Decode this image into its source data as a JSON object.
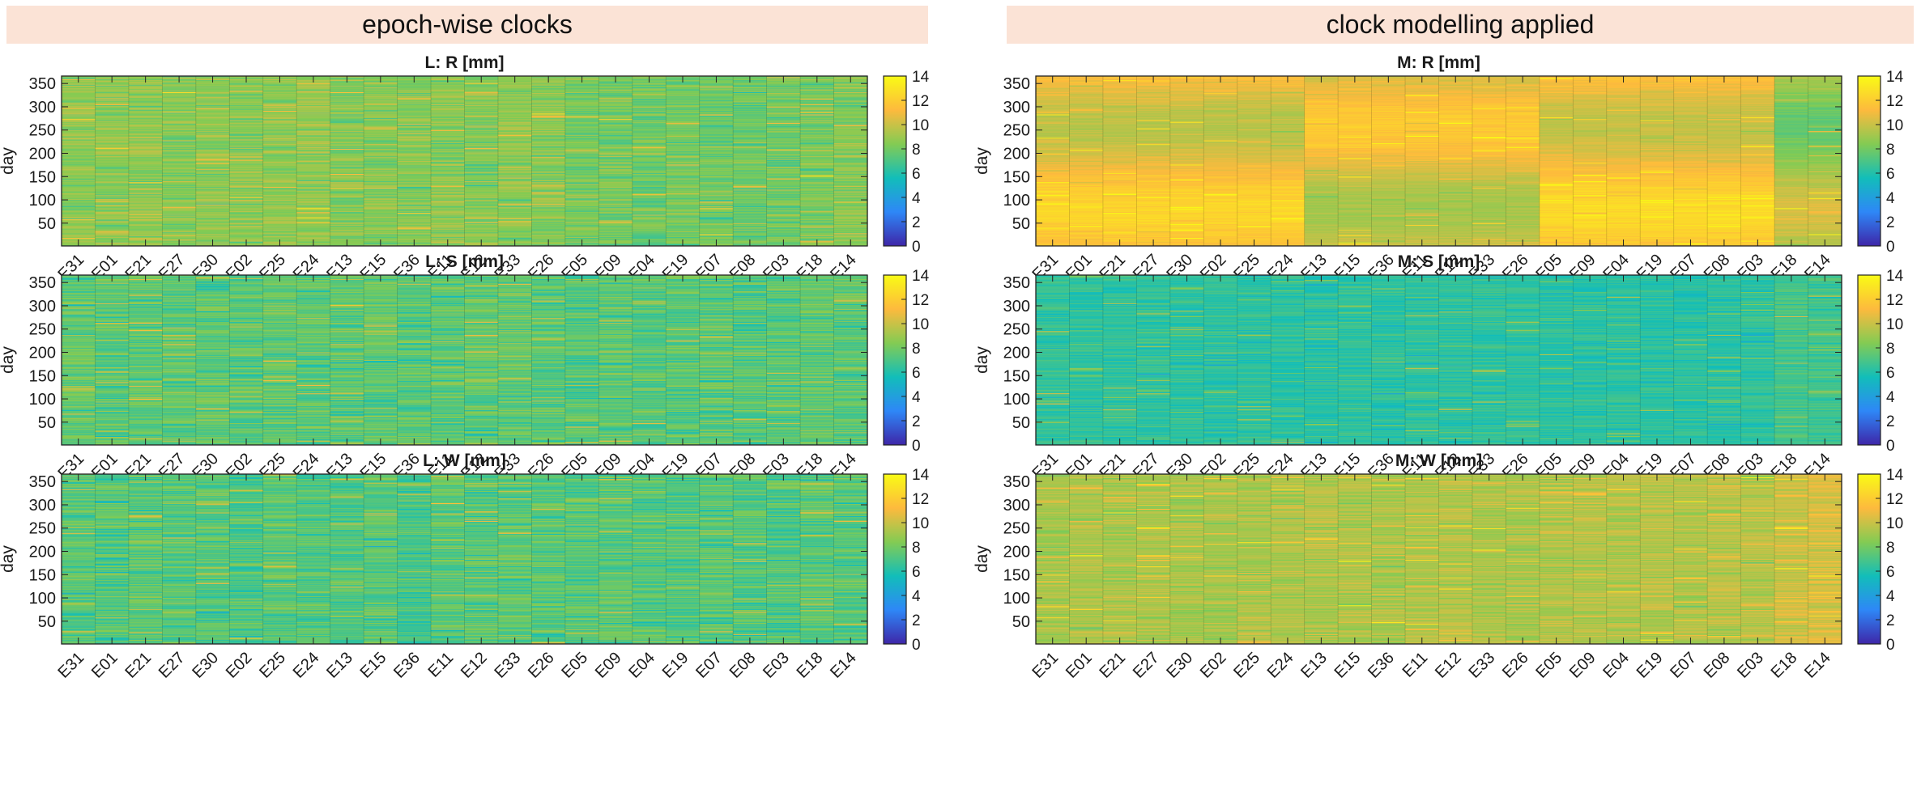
{
  "headers": {
    "left": "epoch-wise clocks",
    "right": "clock modelling applied"
  },
  "colors": {
    "header_bg": "#fbe3d6",
    "colormap": "parula"
  },
  "shared": {
    "categories": [
      "E31",
      "E01",
      "E21",
      "E27",
      "E30",
      "E02",
      "E25",
      "E24",
      "E13",
      "E15",
      "E36",
      "E11",
      "E12",
      "E33",
      "E26",
      "E05",
      "E09",
      "E04",
      "E19",
      "E07",
      "E08",
      "E03",
      "E18",
      "E14"
    ],
    "ylabel": "day",
    "yticks": [
      50,
      100,
      150,
      200,
      250,
      300,
      350
    ],
    "ylim": [
      1,
      366
    ],
    "clim": [
      0,
      14
    ],
    "cbar_ticks": [
      0,
      2,
      4,
      6,
      8,
      10,
      12,
      14
    ]
  },
  "chart_data": [
    {
      "type": "heatmap",
      "title": "L: R [mm]",
      "ylabel": "day",
      "clim": [
        0,
        14
      ],
      "column_means": [
        8.6,
        8.6,
        8.7,
        8.5,
        8.6,
        8.5,
        8.7,
        8.8,
        8.4,
        8.5,
        8.4,
        8.5,
        8.4,
        8.6,
        8.5,
        8.2,
        8.1,
        8.0,
        8.0,
        7.9,
        7.9,
        8.0,
        8.1,
        8.4
      ],
      "row_noise": 1.6
    },
    {
      "type": "heatmap",
      "title": "M: R [mm]",
      "ylabel": "day",
      "clim": [
        0,
        14
      ],
      "column_means": [
        11.0,
        11.0,
        11.0,
        11.0,
        11.0,
        11.0,
        11.0,
        11.0,
        10.5,
        10.5,
        10.5,
        10.5,
        10.5,
        10.5,
        10.5,
        11.2,
        11.2,
        11.2,
        11.2,
        11.2,
        11.2,
        11.2,
        9.0,
        9.0
      ],
      "row_noise": 0.7
    },
    {
      "type": "heatmap",
      "title": "L: S [mm]",
      "ylabel": "day",
      "clim": [
        0,
        14
      ],
      "column_means": [
        7.6,
        7.4,
        7.6,
        7.6,
        7.5,
        7.4,
        7.6,
        7.5,
        7.5,
        7.5,
        7.3,
        7.4,
        7.5,
        7.6,
        7.4,
        7.3,
        7.4,
        7.3,
        7.3,
        7.4,
        7.3,
        7.3,
        7.5,
        7.4
      ],
      "row_noise": 1.8
    },
    {
      "type": "heatmap",
      "title": "M: S [mm]",
      "ylabel": "day",
      "clim": [
        0,
        14
      ],
      "column_means": [
        6.4,
        6.3,
        6.4,
        6.4,
        6.3,
        6.3,
        6.3,
        6.3,
        6.2,
        6.3,
        6.2,
        6.3,
        6.3,
        6.3,
        6.3,
        6.2,
        6.2,
        6.3,
        6.2,
        6.2,
        6.2,
        6.3,
        6.8,
        6.8
      ],
      "row_noise": 1.1
    },
    {
      "type": "heatmap",
      "title": "L: W [mm]",
      "ylabel": "day",
      "clim": [
        0,
        14
      ],
      "column_means": [
        7.4,
        7.2,
        7.5,
        7.3,
        7.3,
        7.1,
        7.4,
        7.2,
        7.2,
        7.3,
        7.1,
        7.3,
        7.4,
        7.5,
        7.3,
        7.3,
        7.4,
        7.4,
        7.3,
        7.3,
        7.3,
        7.2,
        7.4,
        7.3
      ],
      "row_noise": 1.8
    },
    {
      "type": "heatmap",
      "title": "M: W [mm]",
      "ylabel": "day",
      "clim": [
        0,
        14
      ],
      "column_means": [
        9.2,
        9.3,
        9.3,
        9.3,
        9.2,
        9.2,
        9.3,
        9.3,
        9.4,
        9.3,
        9.3,
        9.4,
        9.5,
        9.3,
        9.3,
        9.5,
        9.5,
        9.5,
        9.6,
        9.5,
        9.6,
        9.6,
        10.0,
        10.3
      ],
      "row_noise": 1.3
    }
  ]
}
